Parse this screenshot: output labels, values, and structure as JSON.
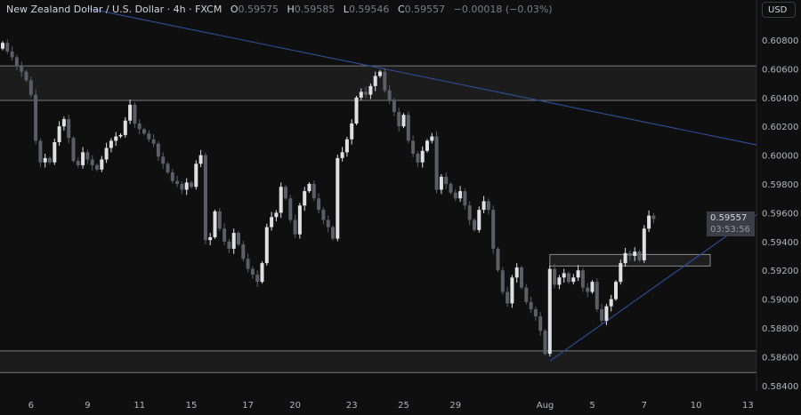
{
  "header": {
    "symbol": "New Zealand Dollar / U.S. Dollar · 4h · FXCM",
    "o_label": "O",
    "o": "0.59575",
    "h_label": "H",
    "h": "0.59585",
    "l_label": "L",
    "l": "0.59546",
    "c_label": "C",
    "c": "0.59557",
    "change": "−0.00018 (−0.03%)"
  },
  "currency_button": "USD",
  "current_price": {
    "price": "0.59557",
    "countdown": "03:53:56"
  },
  "colors": {
    "background": "#0f0f0f",
    "up": "#e0e0e3",
    "down": "#5b5e68",
    "trendline": "#2c4a8f",
    "zone": "#1c1c1c",
    "zone_border": "#7a7a7a"
  },
  "chart_data": {
    "type": "candlestick",
    "interval": "4h",
    "ylim": [
      0.5836,
      0.6102
    ],
    "y_ticks": [
      "0.60800",
      "0.60600",
      "0.60400",
      "0.60200",
      "0.60000",
      "0.59800",
      "0.59600",
      "0.59400",
      "0.59200",
      "0.59000",
      "0.58800",
      "0.58600",
      "0.58400"
    ],
    "x_ticks": [
      {
        "label": "6",
        "index": 6
      },
      {
        "label": "9",
        "index": 18
      },
      {
        "label": "11",
        "index": 29
      },
      {
        "label": "15",
        "index": 40
      },
      {
        "label": "17",
        "index": 52
      },
      {
        "label": "20",
        "index": 62
      },
      {
        "label": "23",
        "index": 74
      },
      {
        "label": "25",
        "index": 85
      },
      {
        "label": "29",
        "index": 96
      },
      {
        "label": "Aug",
        "index": 115
      },
      {
        "label": "5",
        "index": 125
      },
      {
        "label": "7",
        "index": 136
      },
      {
        "label": "10",
        "index": 147
      },
      {
        "label": "13",
        "index": 158
      }
    ],
    "closes": [
      0.6078,
      0.6072,
      0.6068,
      0.6062,
      0.6058,
      0.6052,
      0.6042,
      0.601,
      0.5995,
      0.5998,
      0.5995,
      0.6009,
      0.602,
      0.6025,
      0.6012,
      0.5996,
      0.5993,
      0.6002,
      0.5997,
      0.5993,
      0.599,
      0.5997,
      0.6005,
      0.601,
      0.6013,
      0.6014,
      0.6024,
      0.6035,
      0.6022,
      0.6018,
      0.6015,
      0.6011,
      0.6008,
      0.5999,
      0.5994,
      0.5988,
      0.5982,
      0.598,
      0.5976,
      0.5981,
      0.5978,
      0.5994,
      0.6,
      0.5941,
      0.5943,
      0.5961,
      0.5949,
      0.594,
      0.5935,
      0.5946,
      0.5938,
      0.5928,
      0.5921,
      0.5917,
      0.5912,
      0.5925,
      0.595,
      0.5957,
      0.596,
      0.5978,
      0.597,
      0.5955,
      0.5945,
      0.5965,
      0.5975,
      0.598,
      0.597,
      0.5962,
      0.5955,
      0.595,
      0.5942,
      0.5998,
      0.6002,
      0.6011,
      0.6022,
      0.604,
      0.6044,
      0.6042,
      0.6048,
      0.6055,
      0.6058,
      0.6045,
      0.6038,
      0.603,
      0.602,
      0.6028,
      0.601,
      0.6001,
      0.5995,
      0.6003,
      0.601,
      0.6013,
      0.5976,
      0.5985,
      0.598,
      0.5974,
      0.597,
      0.5975,
      0.5965,
      0.5955,
      0.5948,
      0.5962,
      0.5968,
      0.5962,
      0.5935,
      0.592,
      0.5905,
      0.5897,
      0.5915,
      0.5922,
      0.5908,
      0.5898,
      0.5893,
      0.5888,
      0.5878,
      0.5862,
      0.5921,
      0.591,
      0.5915,
      0.5918,
      0.5912,
      0.5915,
      0.592,
      0.5908,
      0.5905,
      0.5912,
      0.5893,
      0.5885,
      0.5895,
      0.59,
      0.5912,
      0.5925,
      0.5932,
      0.593,
      0.5933,
      0.5927,
      0.5949,
      0.5958,
      0.59557
    ],
    "zones": [
      {
        "top": 0.6062,
        "bottom": 0.6038
      },
      {
        "top": 0.5864,
        "bottom": 0.5849
      }
    ],
    "boxes": [
      {
        "from_index": 116,
        "to_index": 150,
        "top": 0.5931,
        "bottom": 0.5923
      }
    ],
    "trendlines": [
      {
        "from_index": 18,
        "from_price": 0.6102,
        "to_index": 160,
        "to_price": 0.6007
      },
      {
        "from_index": 116,
        "from_price": 0.5857,
        "to_index": 160,
        "to_price": 0.5959
      }
    ]
  }
}
